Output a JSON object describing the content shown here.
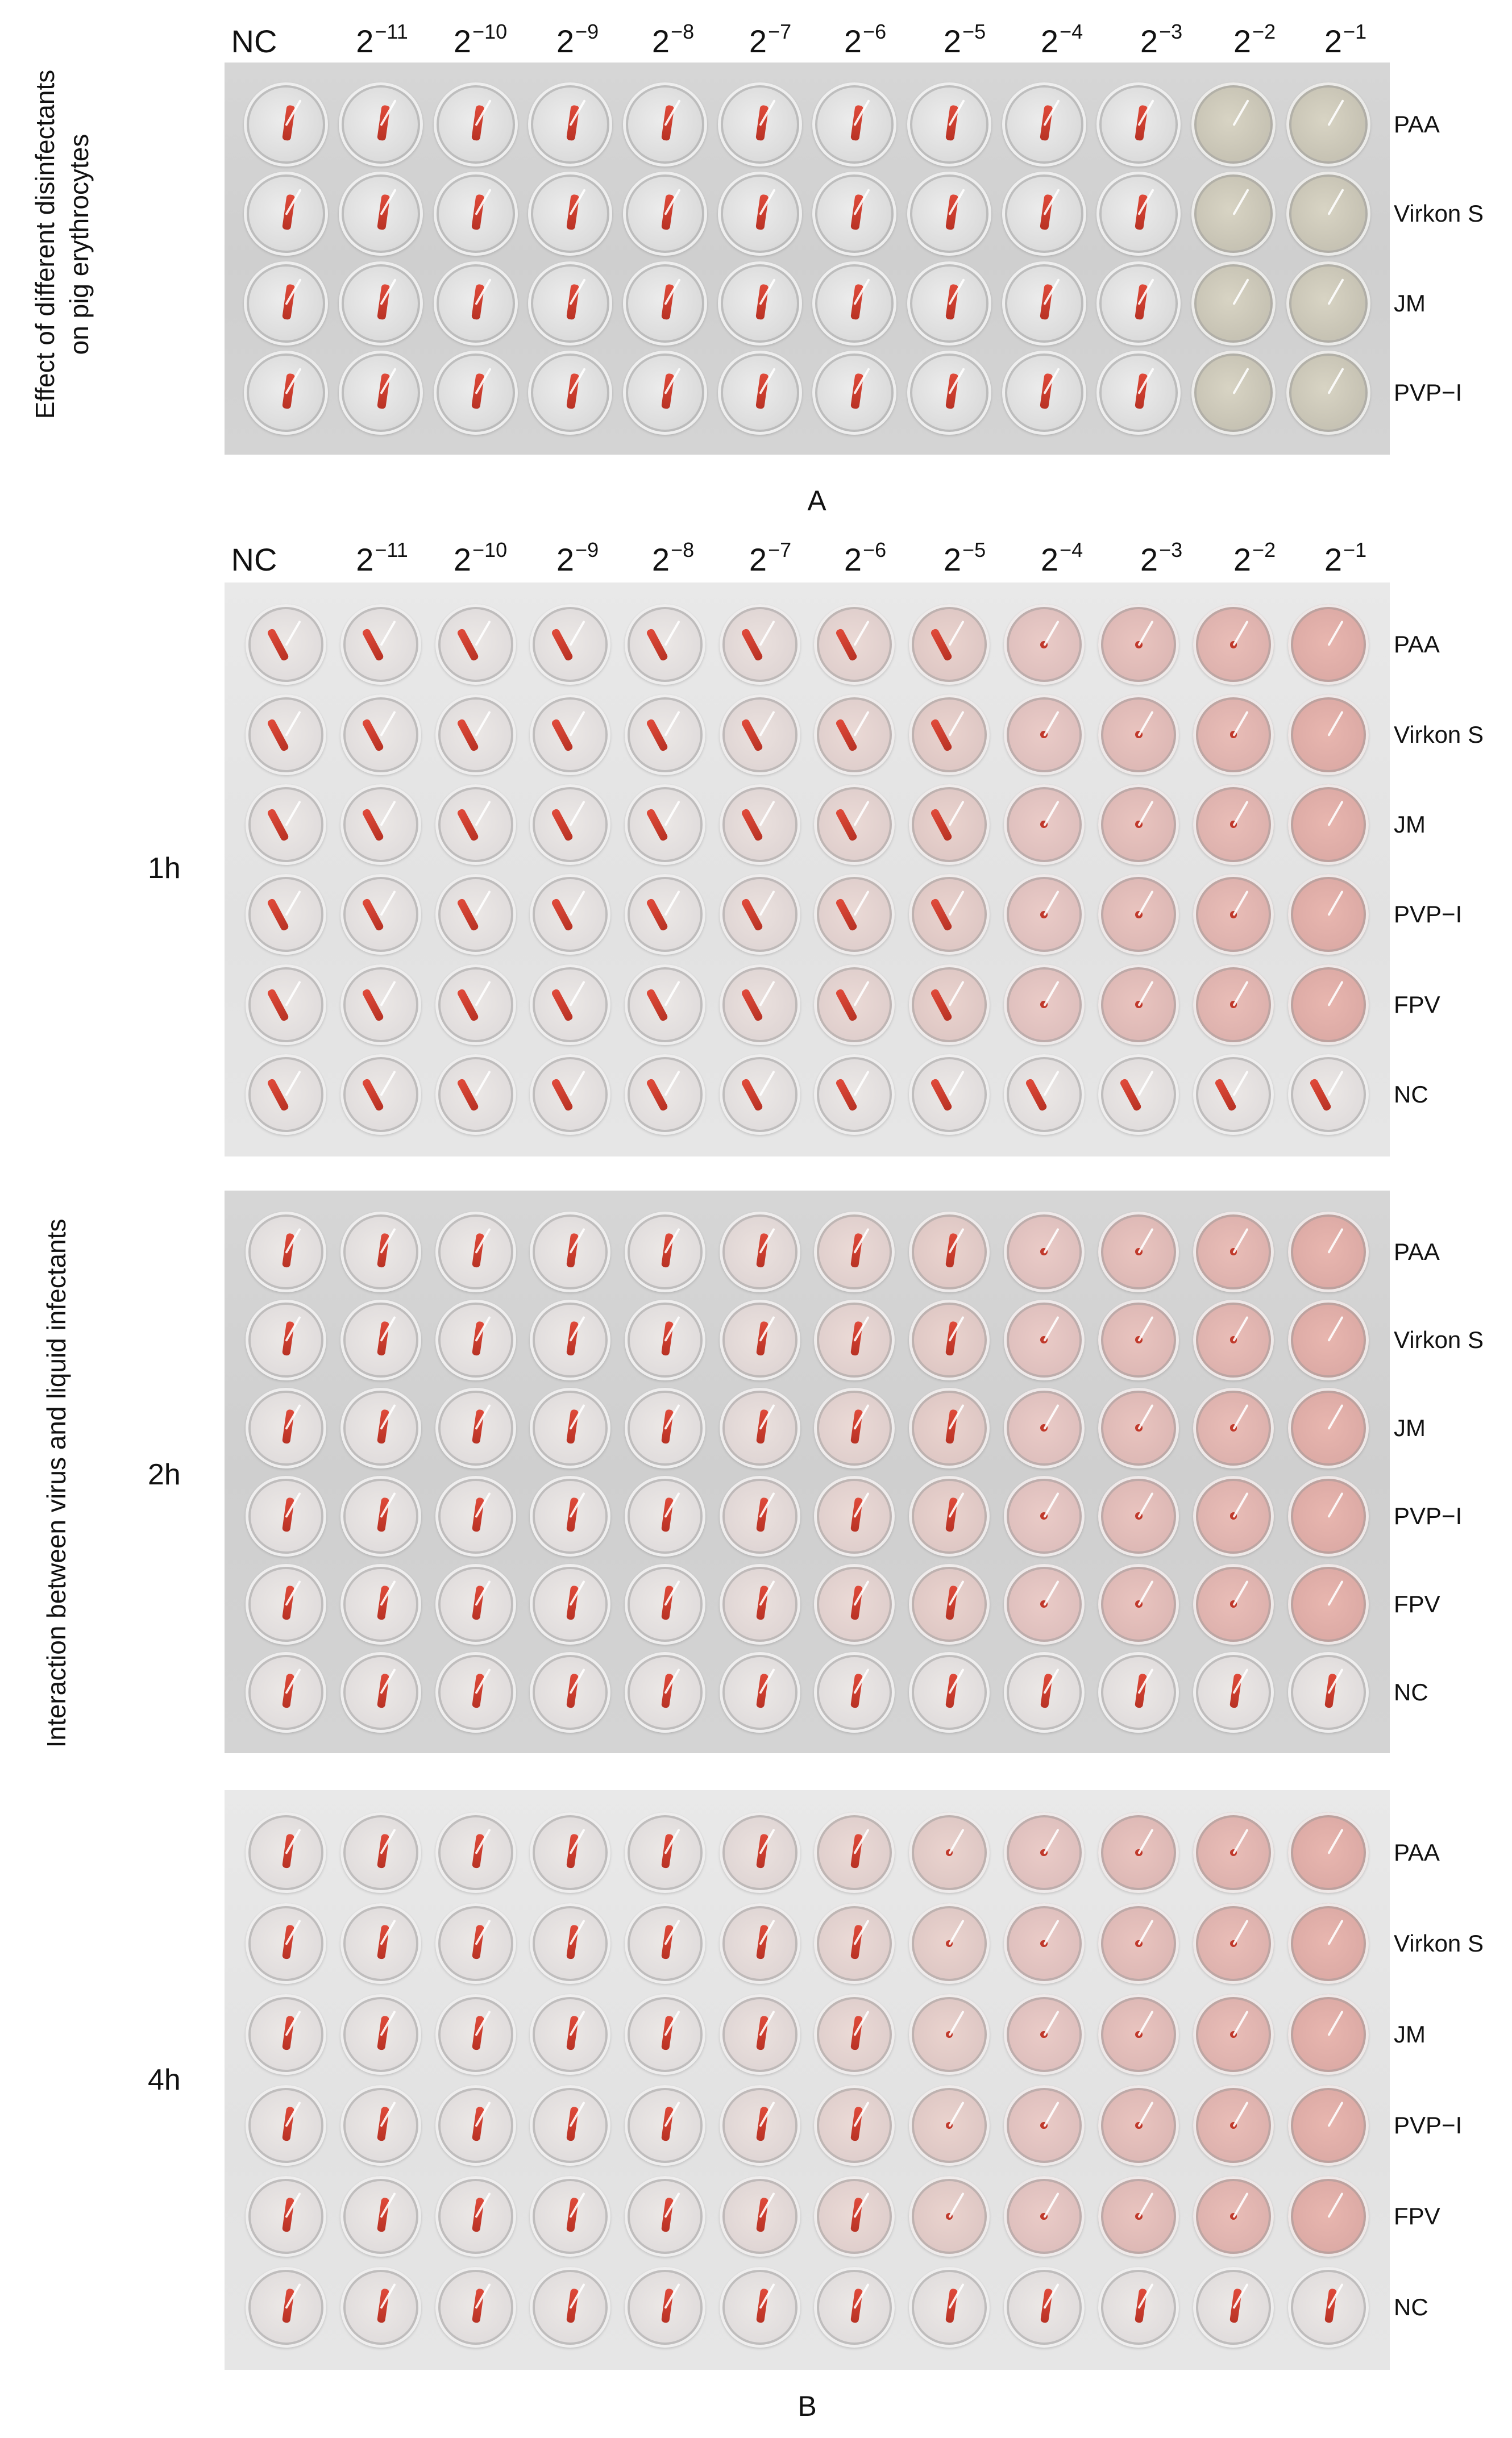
{
  "columns": [
    "NC",
    "2",
    "2",
    "2",
    "2",
    "2",
    "2",
    "2",
    "2",
    "2",
    "2",
    "2"
  ],
  "column_exponents": [
    "",
    "−11",
    "−10",
    "−9",
    "−8",
    "−7",
    "−6",
    "−5",
    "−4",
    "−3",
    "−2",
    "−1"
  ],
  "panel_a": {
    "side_label_line1": "Effect of different disinfectants",
    "side_label_line2": "on pig erythrocytes",
    "rows": [
      "PAA",
      "Virkon S",
      "JM",
      "PVP−I"
    ],
    "letter": "A"
  },
  "panel_b": {
    "side_label": "Interaction between virus and liquid infectants",
    "plates": [
      {
        "time": "1h",
        "rows": [
          "PAA",
          "Virkon S",
          "JM",
          "PVP−I",
          "FPV",
          "NC"
        ]
      },
      {
        "time": "2h",
        "rows": [
          "PAA",
          "Virkon S",
          "JM",
          "PVP−I",
          "FPV",
          "NC"
        ]
      },
      {
        "time": "4h",
        "rows": [
          "PAA",
          "Virkon S",
          "JM",
          "PVP−I",
          "FPV",
          "NC"
        ]
      }
    ],
    "letter": "B"
  },
  "colors": {
    "well_clear": "#e6e2e0",
    "well_pink": "#ecc9bf",
    "erythrocyte_red": "#c0392b"
  }
}
